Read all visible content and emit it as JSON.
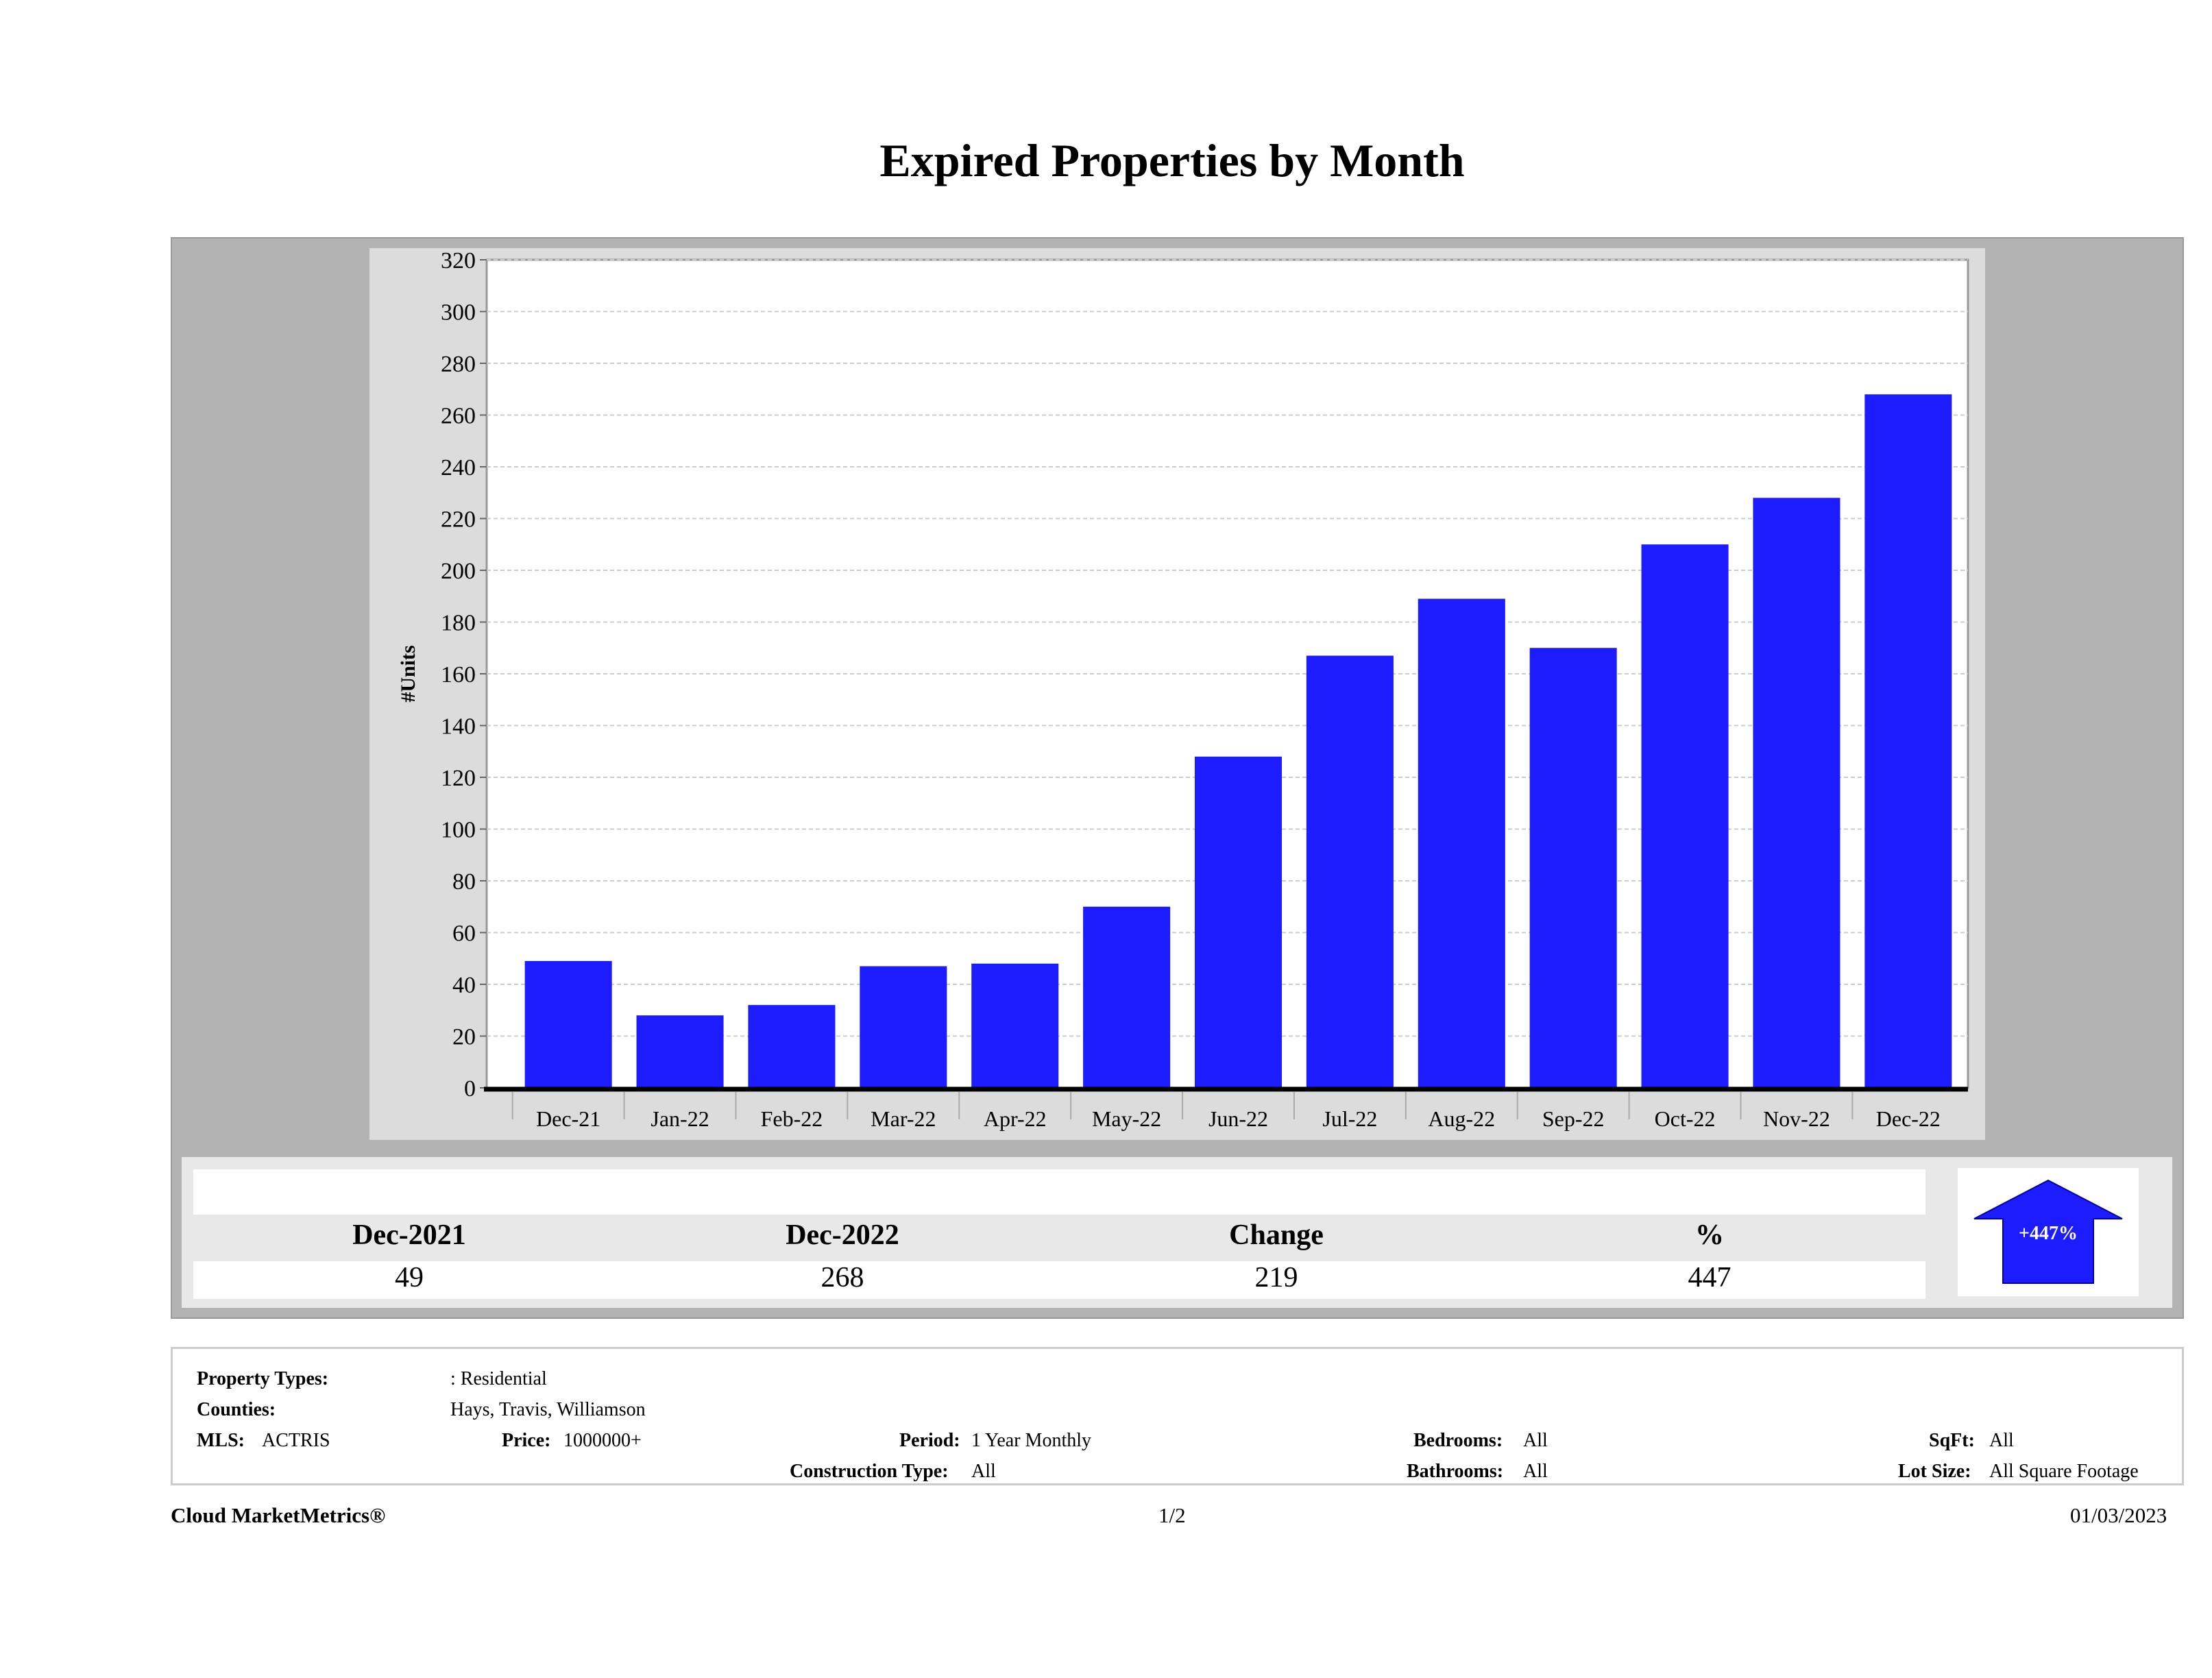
{
  "title": "Expired Properties by Month",
  "chart_data": {
    "type": "bar",
    "title": "Expired Properties by Month",
    "xlabel": "",
    "ylabel": "#Units",
    "categories": [
      "Dec-21",
      "Jan-22",
      "Feb-22",
      "Mar-22",
      "Apr-22",
      "May-22",
      "Jun-22",
      "Jul-22",
      "Aug-22",
      "Sep-22",
      "Oct-22",
      "Nov-22",
      "Dec-22"
    ],
    "values": [
      49,
      28,
      32,
      47,
      48,
      70,
      128,
      167,
      189,
      170,
      210,
      228,
      268
    ],
    "ylim": [
      0,
      320
    ],
    "yticks": [
      "0",
      "20",
      "40",
      "60",
      "80",
      "100",
      "120",
      "140",
      "160",
      "180",
      "200",
      "220",
      "240",
      "260",
      "280",
      "300",
      "320"
    ],
    "grid": true,
    "bar_color": "#1c1cff"
  },
  "summary": {
    "headers": [
      "Dec-2021",
      "Dec-2022",
      "Change",
      "%"
    ],
    "values": [
      "49",
      "268",
      "219",
      "447"
    ],
    "badge": "+447%",
    "badge_icon": "arrow-up-icon"
  },
  "criteria": {
    "property_types_label": "Property Types:",
    "property_types_value": ": Residential",
    "counties_label": "Counties:",
    "counties_value": "Hays, Travis, Williamson",
    "mls_label": "MLS:",
    "mls_value": "ACTRIS",
    "price_label": "Price:",
    "price_value": "1000000+",
    "period_label": "Period:",
    "period_value": "1 Year Monthly",
    "construction_label": "Construction Type:",
    "construction_value": "All",
    "bedrooms_label": "Bedrooms:",
    "bedrooms_value": "All",
    "bathrooms_label": "Bathrooms:",
    "bathrooms_value": "All",
    "sqft_label": "SqFt:",
    "sqft_value": "All",
    "lotsize_label": "Lot Size:",
    "lotsize_value": "All Square Footage"
  },
  "footer": {
    "brand": "Cloud MarketMetrics®",
    "page": "1/2",
    "date": "01/03/2023"
  }
}
